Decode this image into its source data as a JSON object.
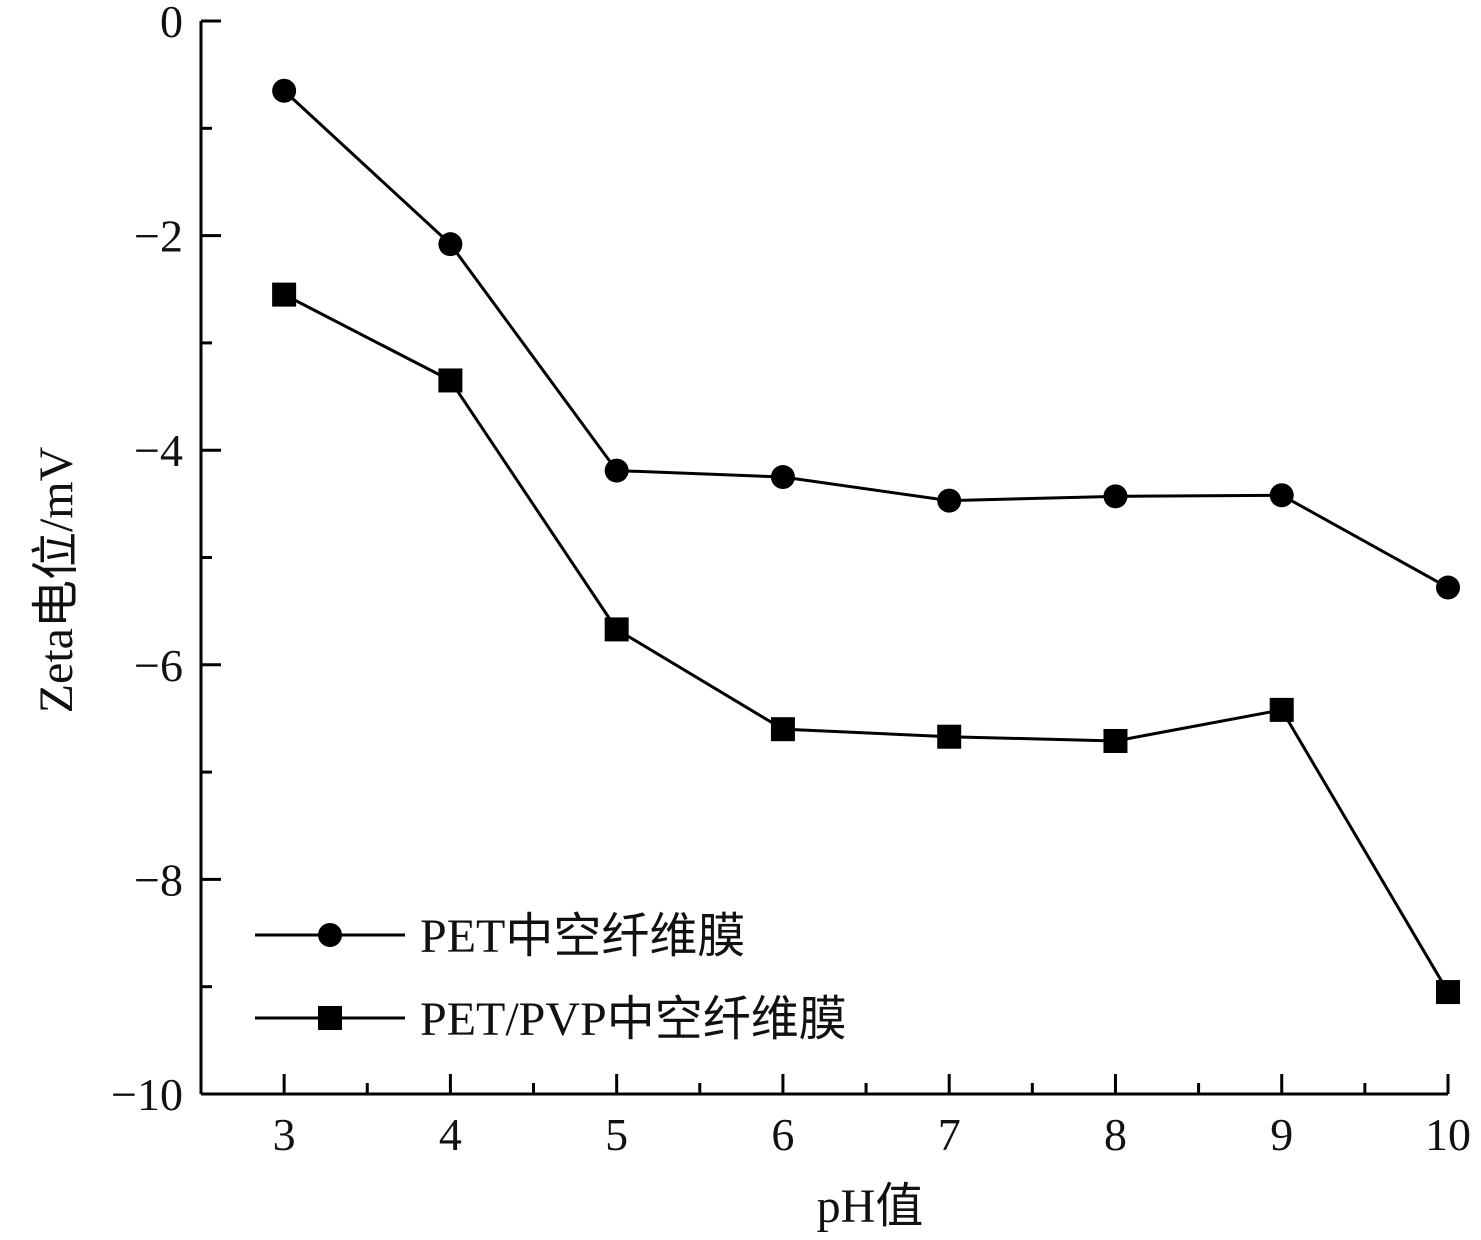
{
  "chart_data": {
    "type": "line",
    "title": "",
    "xlabel": "pH值",
    "ylabel": "Zeta电位/mV",
    "x": [
      3,
      4,
      5,
      6,
      7,
      8,
      9,
      10
    ],
    "xlim": [
      2.5,
      10
    ],
    "ylim": [
      -10,
      0
    ],
    "x_ticks": [
      3,
      4,
      5,
      6,
      7,
      8,
      9,
      10
    ],
    "x_tick_labels": [
      "3",
      "4",
      "5",
      "6",
      "7",
      "8",
      "9",
      "10"
    ],
    "y_ticks": [
      0,
      -2,
      -4,
      -6,
      -8,
      -10
    ],
    "y_tick_labels": [
      "0",
      "−2",
      "−4",
      "−6",
      "−8",
      "−10"
    ],
    "grid": false,
    "legend_position": "bottom-left",
    "series": [
      {
        "name": "PET中空纤维膜",
        "marker": "circle",
        "color": "#000000",
        "values": [
          -0.65,
          -2.08,
          -4.19,
          -4.25,
          -4.47,
          -4.43,
          -4.42,
          -5.28
        ]
      },
      {
        "name": "PET/PVP中空纤维膜",
        "marker": "square",
        "color": "#000000",
        "values": [
          -2.55,
          -3.35,
          -5.67,
          -6.6,
          -6.67,
          -6.71,
          -6.42,
          -9.05
        ]
      }
    ]
  }
}
